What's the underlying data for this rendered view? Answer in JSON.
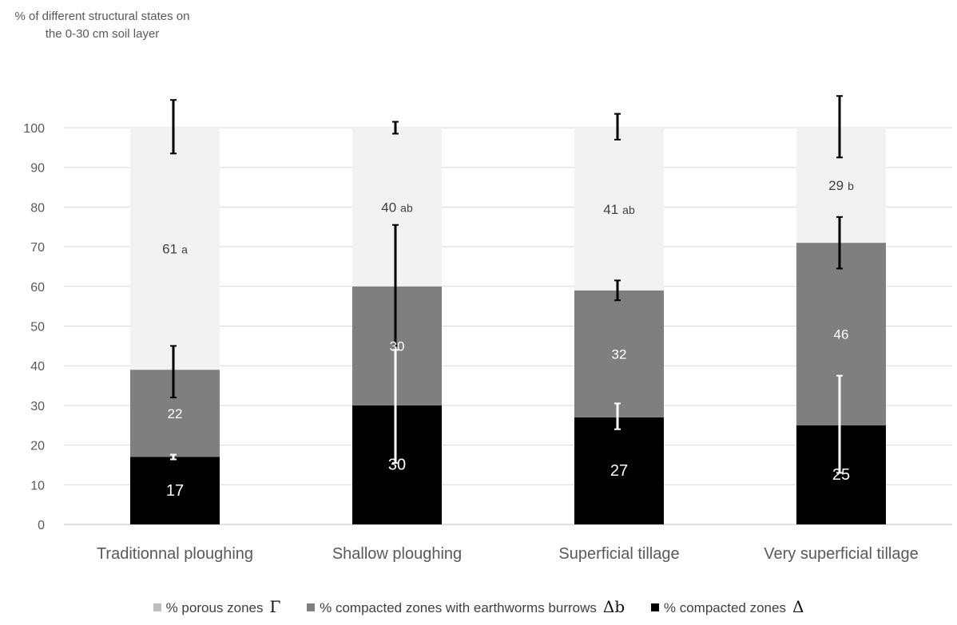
{
  "chart_data": {
    "type": "bar",
    "stacked": true,
    "ylabel": "% of different structural states on the 0-30 cm soil layer",
    "ylim": [
      0,
      100
    ],
    "yticks": [
      0,
      10,
      20,
      30,
      40,
      50,
      60,
      70,
      80,
      90,
      100
    ],
    "grid": true,
    "legend_position": "bottom",
    "categories": [
      "Traditionnal ploughing",
      "Shallow ploughing",
      "Superficial tillage",
      "Very superficial tillage"
    ],
    "series": [
      {
        "name": "% compacted zones",
        "symbol": "Δ",
        "color": "#000000",
        "label_color": "#ffffff",
        "values": [
          17,
          30,
          27,
          25
        ],
        "labels": [
          "17",
          "30",
          "27",
          "25"
        ],
        "error_bars": [
          [
            16.4,
            17.6
          ],
          [
            15.5,
            44
          ],
          [
            24,
            30.5
          ],
          [
            13,
            37.5
          ]
        ],
        "error_bar_color": "#ffffff"
      },
      {
        "name": "% compacted zones with earthworms burrows",
        "symbol": "Δb",
        "color": "#7f7f7f",
        "label_color": "#ffffff",
        "values": [
          22,
          30,
          32,
          46
        ],
        "labels": [
          "22",
          "30",
          "32",
          "46"
        ],
        "error_bars": [
          [
            32,
            45
          ],
          [
            45,
            75.5
          ],
          [
            56.5,
            61.5
          ],
          [
            64.5,
            77.5
          ]
        ],
        "error_bar_color": "#000000"
      },
      {
        "name": "% porous zones",
        "symbol": "Γ",
        "color": "#f2f2f2",
        "label_color": "#404040",
        "values": [
          61,
          40,
          41,
          29
        ],
        "labels": [
          "61 a",
          "40 ab",
          "41 ab",
          "29 b"
        ],
        "error_bars": [
          [
            93.5,
            107
          ],
          [
            98.5,
            101.5
          ],
          [
            97,
            103.5
          ],
          [
            92.5,
            108
          ]
        ],
        "error_bar_color": "#000000"
      }
    ]
  }
}
